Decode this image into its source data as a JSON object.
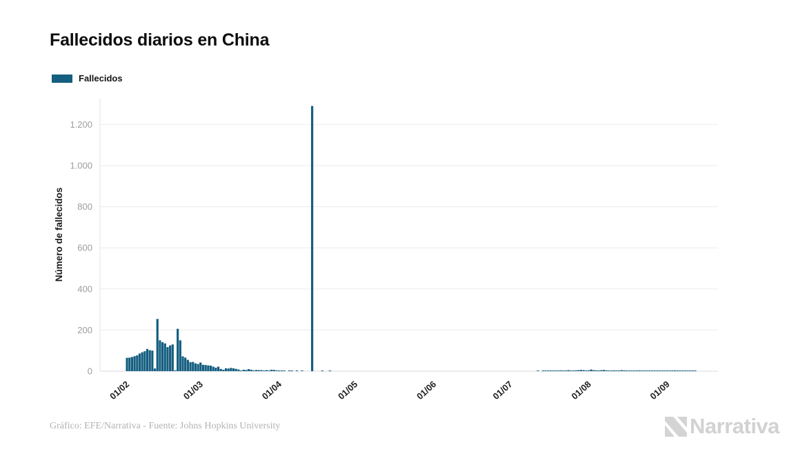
{
  "title": "Fallecidos diarios en China",
  "legend": {
    "label": "Fallecidos",
    "color": "#145e80"
  },
  "y_axis": {
    "title": "Número de fallecidos"
  },
  "footer": {
    "credit": "Gráfico: EFE/Narrativa - Fuente: Johns Hopkins University",
    "brand": "Narrativa"
  },
  "colors": {
    "bar": "#145e80",
    "grid": "#ebebeb",
    "axis": "#d9d9d9",
    "y_tick_text": "#9c9c9c",
    "x_tick_text": "#1f1f1f"
  },
  "chart_data": {
    "type": "bar",
    "title": "Fallecidos diarios en China",
    "series_name": "Fallecidos",
    "ylabel": "Número de fallecidos",
    "xlabel": "",
    "ylim": [
      0,
      1320
    ],
    "grid": "horizontal",
    "legend_position": "top-left",
    "bar_color": "#145e80",
    "frequency": "daily",
    "start_date": "2020-02-04",
    "end_date": "2020-09-23",
    "y_ticks": [
      {
        "v": 0,
        "label": "0"
      },
      {
        "v": 200,
        "label": "200"
      },
      {
        "v": 400,
        "label": "400"
      },
      {
        "v": 600,
        "label": "600"
      },
      {
        "v": 800,
        "label": "800"
      },
      {
        "v": 1000,
        "label": "1.000"
      },
      {
        "v": 1200,
        "label": "1.200"
      }
    ],
    "x_ticks": [
      {
        "label": "01/02",
        "day": -3
      },
      {
        "label": "01/03",
        "day": 26
      },
      {
        "label": "01/04",
        "day": 57
      },
      {
        "label": "01/05",
        "day": 87
      },
      {
        "label": "01/06",
        "day": 118
      },
      {
        "label": "01/07",
        "day": 148
      },
      {
        "label": "01/08",
        "day": 179
      },
      {
        "label": "01/09",
        "day": 210
      }
    ],
    "values": [
      65,
      66,
      69,
      73,
      77,
      86,
      92,
      97,
      108,
      102,
      100,
      13,
      254,
      150,
      141,
      135,
      117,
      125,
      130,
      4,
      206,
      150,
      72,
      66,
      55,
      44,
      45,
      38,
      35,
      42,
      31,
      30,
      28,
      27,
      22,
      17,
      22,
      11,
      7,
      14,
      13,
      16,
      14,
      11,
      8,
      3,
      7,
      6,
      10,
      7,
      4,
      6,
      5,
      5,
      3,
      5,
      2,
      7,
      6,
      4,
      1,
      3,
      2,
      0,
      2,
      1,
      0,
      1,
      0,
      1,
      0,
      0,
      0,
      1290,
      0,
      0,
      0,
      1,
      0,
      0,
      1,
      0,
      0,
      0,
      0,
      0,
      0,
      0,
      0,
      0,
      0,
      0,
      0,
      0,
      0,
      0,
      0,
      0,
      0,
      0,
      0,
      0,
      0,
      0,
      0,
      0,
      0,
      0,
      0,
      0,
      0,
      0,
      0,
      0,
      0,
      0,
      0,
      0,
      0,
      0,
      0,
      0,
      0,
      0,
      0,
      0,
      0,
      0,
      0,
      0,
      0,
      0,
      0,
      0,
      0,
      0,
      0,
      0,
      0,
      0,
      0,
      0,
      0,
      0,
      0,
      0,
      0,
      0,
      0,
      0,
      0,
      0,
      0,
      0,
      0,
      0,
      0,
      0,
      0,
      0,
      0,
      0,
      1,
      0,
      1,
      1,
      2,
      1,
      2,
      3,
      2,
      4,
      3,
      2,
      5,
      3,
      3,
      4,
      5,
      6,
      5,
      2,
      4,
      8,
      5,
      4,
      3,
      5,
      6,
      4,
      3,
      2,
      4,
      3,
      2,
      5,
      4,
      3,
      2,
      1,
      3,
      2,
      4,
      2,
      3,
      1,
      2,
      3,
      2,
      1,
      2,
      1,
      3,
      2,
      1,
      2,
      4,
      3,
      2,
      1,
      2,
      3,
      1,
      2,
      1,
      0,
      0,
      0,
      0,
      0,
      0,
      0,
      0
    ]
  }
}
